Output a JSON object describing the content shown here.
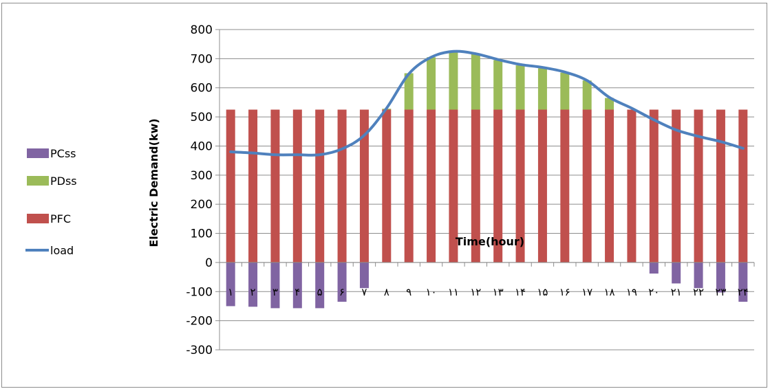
{
  "chart_data": {
    "type": "bar",
    "stacked": true,
    "xlabel": "Time(hour)",
    "ylabel": "Electric Demand(kw)",
    "ylim": [
      -300,
      800
    ],
    "yticks": [
      -300,
      -200,
      -100,
      0,
      100,
      200,
      300,
      400,
      500,
      600,
      700,
      800
    ],
    "grid": true,
    "legend_position": "left",
    "categories": [
      "۱",
      "۲",
      "۳",
      "۴",
      "۵",
      "۶",
      "۷",
      "۸",
      "۹",
      "۱۰",
      "۱۱",
      "۱۲",
      "۱۳",
      "۱۴",
      "۱۵",
      "۱۶",
      "۱۷",
      "۱۸",
      "۱۹",
      "۲۰",
      "۲۱",
      "۲۲",
      "۲۳",
      "۲۴"
    ],
    "series": [
      {
        "name": "PCss",
        "kind": "bar",
        "color": "#8064a2",
        "values": [
          -150,
          -152,
          -157,
          -157,
          -157,
          -135,
          -88,
          0,
          0,
          0,
          0,
          0,
          0,
          0,
          0,
          0,
          0,
          0,
          0,
          -38,
          -72,
          -88,
          -103,
          -135
        ]
      },
      {
        "name": "PDss",
        "kind": "bar",
        "color": "#9bbb59",
        "values": [
          0,
          0,
          0,
          0,
          0,
          0,
          0,
          3,
          125,
          180,
          198,
          190,
          170,
          152,
          142,
          127,
          100,
          40,
          0,
          0,
          0,
          0,
          0,
          0
        ]
      },
      {
        "name": "PFC",
        "kind": "bar",
        "color": "#c0504d",
        "values": [
          525,
          525,
          525,
          525,
          525,
          525,
          525,
          525,
          525,
          525,
          525,
          525,
          525,
          525,
          525,
          525,
          525,
          525,
          525,
          525,
          525,
          525,
          525,
          525
        ]
      },
      {
        "name": "load",
        "kind": "line",
        "color": "#4f81bd",
        "values": [
          380,
          376,
          370,
          370,
          370,
          390,
          437,
          530,
          648,
          705,
          725,
          717,
          697,
          680,
          670,
          654,
          625,
          567,
          530,
          490,
          455,
          433,
          415,
          392
        ]
      }
    ]
  }
}
